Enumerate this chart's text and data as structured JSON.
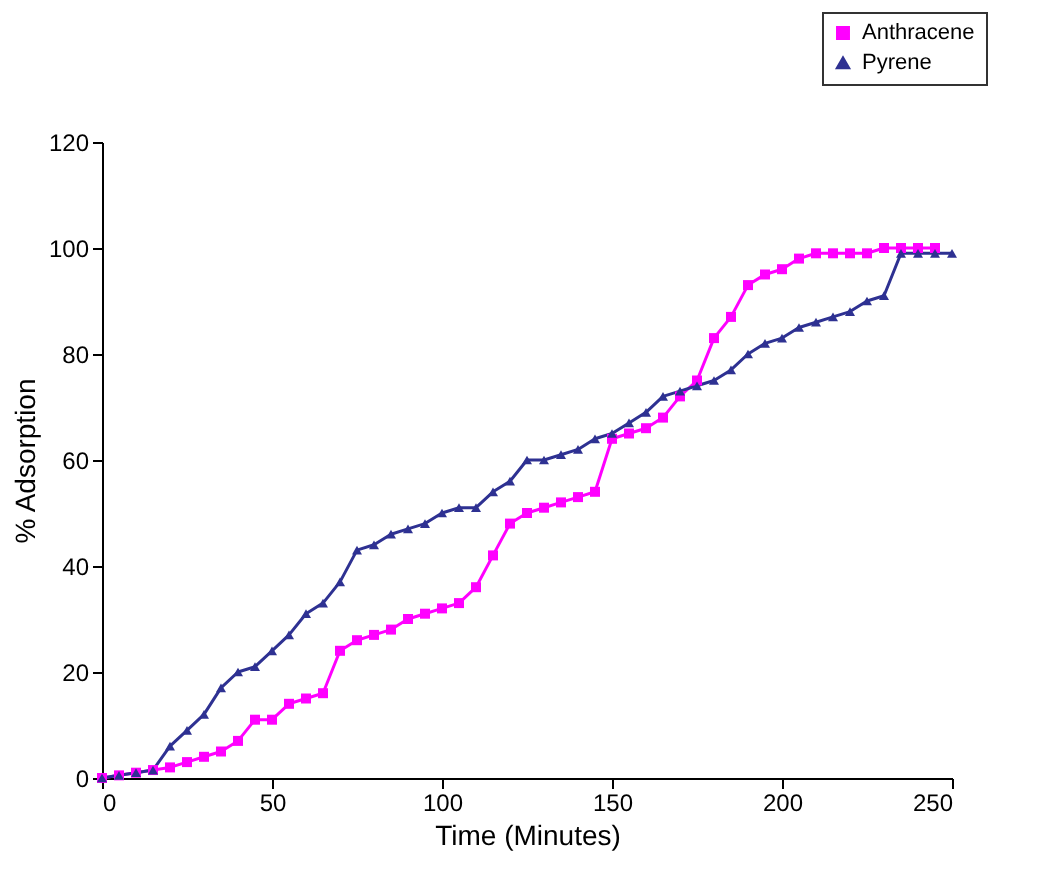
{
  "chart_data": {
    "type": "line",
    "xlabel": "Time (Minutes)",
    "ylabel": "% Adsorption",
    "xlim": [
      0,
      250
    ],
    "xticks": [
      0,
      50,
      100,
      150,
      200,
      250
    ],
    "ylim": [
      0,
      120
    ],
    "yticks": [
      0,
      20,
      40,
      60,
      80,
      100,
      120
    ],
    "grid": false,
    "legend": "top right",
    "line_style": "solid",
    "series": [
      {
        "name": "Anthracene",
        "color": "#ff00ff",
        "marker": "square",
        "x": [
          0,
          5,
          10,
          15,
          20,
          25,
          30,
          35,
          40,
          45,
          50,
          55,
          60,
          65,
          70,
          75,
          80,
          85,
          90,
          95,
          100,
          105,
          110,
          115,
          120,
          125,
          130,
          135,
          140,
          145,
          150,
          155,
          160,
          165,
          170,
          175,
          180,
          185,
          190,
          195,
          200,
          205,
          210,
          215,
          220,
          225,
          230,
          235,
          240,
          245
        ],
        "values": [
          0,
          0.5,
          1,
          1.5,
          2,
          3,
          4,
          5,
          7,
          11,
          11,
          14,
          15,
          16,
          24,
          26,
          27,
          28,
          30,
          31,
          32,
          33,
          36,
          42,
          48,
          50,
          51,
          52,
          53,
          54,
          64,
          65,
          66,
          68,
          72,
          75,
          83,
          87,
          93,
          95,
          96,
          98,
          99,
          99,
          99,
          99,
          100,
          100,
          100,
          100
        ]
      },
      {
        "name": "Pyrene",
        "color": "#2e3192",
        "marker": "triangle",
        "x": [
          0,
          5,
          10,
          15,
          20,
          25,
          30,
          35,
          40,
          45,
          50,
          55,
          60,
          65,
          70,
          75,
          80,
          85,
          90,
          95,
          100,
          105,
          110,
          115,
          120,
          125,
          130,
          135,
          140,
          145,
          150,
          155,
          160,
          165,
          170,
          175,
          180,
          185,
          190,
          195,
          200,
          205,
          210,
          215,
          220,
          225,
          230,
          235,
          240,
          245,
          250
        ],
        "values": [
          0,
          0.5,
          1,
          1.5,
          6,
          9,
          12,
          17,
          20,
          21,
          24,
          27,
          31,
          33,
          37,
          43,
          44,
          46,
          47,
          48,
          50,
          51,
          51,
          54,
          56,
          60,
          60,
          61,
          62,
          64,
          65,
          67,
          69,
          72,
          73,
          74,
          75,
          77,
          80,
          82,
          83,
          85,
          86,
          87,
          88,
          90,
          91,
          99,
          99,
          99,
          99
        ]
      }
    ]
  }
}
